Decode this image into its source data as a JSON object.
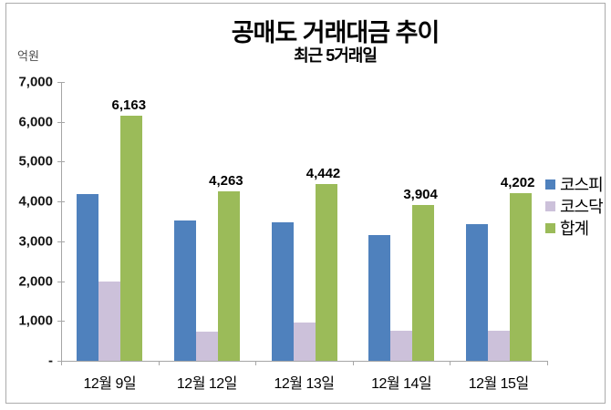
{
  "chart_data": {
    "type": "bar",
    "title": "공매도 거래대금 추이",
    "subtitle": "최근 5거래일",
    "unit_label": "억원",
    "categories": [
      "12월 9일",
      "12월 12일",
      "12월 13일",
      "12월 14일",
      "12월 15일"
    ],
    "series": [
      {
        "name": "코스피",
        "color": "#4F81BD",
        "values": [
          4180,
          3520,
          3470,
          3150,
          3440
        ]
      },
      {
        "name": "코스닥",
        "color": "#CCC1DA",
        "values": [
          1983,
          743,
          972,
          754,
          762
        ]
      },
      {
        "name": "합계",
        "color": "#9BBB59",
        "values": [
          6163,
          4263,
          4442,
          3904,
          4202
        ],
        "data_labels": [
          "6,163",
          "4,263",
          "4,442",
          "3,904",
          "4,202"
        ]
      }
    ],
    "ylim": [
      0,
      7000
    ],
    "y_ticks": [
      {
        "value": 7000,
        "label": "7,000"
      },
      {
        "value": 6000,
        "label": "6,000"
      },
      {
        "value": 5000,
        "label": "5,000"
      },
      {
        "value": 4000,
        "label": "4,000"
      },
      {
        "value": 3000,
        "label": "3,000"
      },
      {
        "value": 2000,
        "label": "2,000"
      },
      {
        "value": 1000,
        "label": "1,000"
      },
      {
        "value": 0,
        "label": "-"
      }
    ],
    "grid": false,
    "legend_position": "right",
    "colors": {
      "axis": "#A6A6A6",
      "border": "#ABABAB",
      "unit_text": "#4D4D4D"
    }
  }
}
